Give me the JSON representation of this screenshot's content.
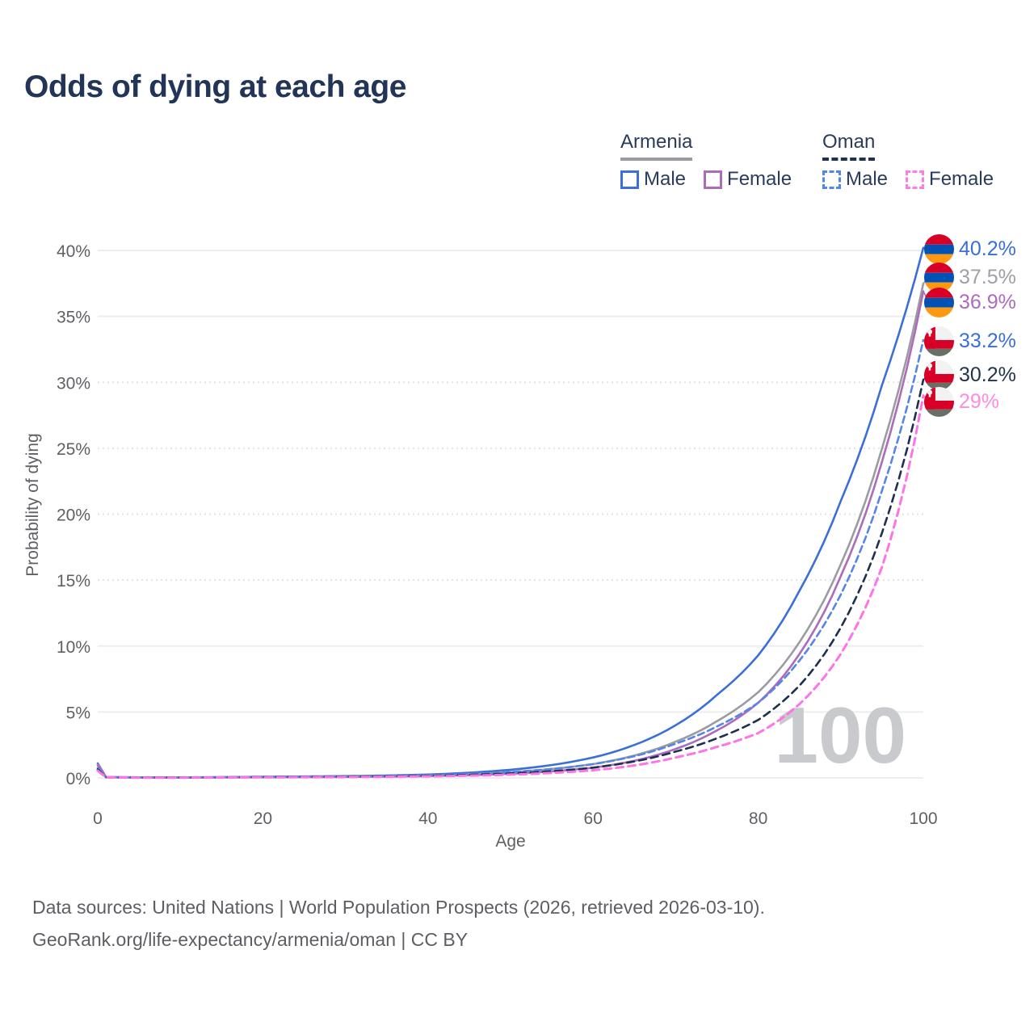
{
  "header": {
    "title": "Odds of dying at each age"
  },
  "legend": {
    "groups": [
      {
        "name": "Armenia",
        "line_style": "solid",
        "underline_color": "#9A9AA0",
        "items": [
          {
            "label": "Male",
            "color": "#3A6FD8"
          },
          {
            "label": "Female",
            "color": "#AC6BBB"
          }
        ]
      },
      {
        "name": "Oman",
        "line_style": "dashed",
        "underline_color": "#1F3251",
        "items": [
          {
            "label": "Male",
            "color": "#5585E6"
          },
          {
            "label": "Female",
            "color": "#FF7BE5"
          }
        ]
      }
    ]
  },
  "watermark": "100",
  "footer": {
    "line1": "Data sources: United Nations | World Population Prospects (2026, retrieved 2026-03-10).",
    "line2": "GeoRank.org/life-expectancy/armenia/oman | CC BY"
  },
  "chart_data": {
    "type": "line",
    "title": "Odds of dying at each age",
    "xlabel": "Age",
    "ylabel": "Probability of dying",
    "x_unit": "years",
    "y_unit": "percent",
    "xlim": [
      0,
      100
    ],
    "ylim": [
      0,
      40
    ],
    "x_ticks": [
      0,
      20,
      40,
      60,
      80,
      100
    ],
    "y_ticks": [
      0,
      5,
      10,
      15,
      20,
      25,
      30,
      35,
      40
    ],
    "grid": "horizontal",
    "legend_position": "top-right",
    "x": [
      0,
      1,
      5,
      10,
      15,
      20,
      25,
      30,
      35,
      40,
      45,
      50,
      55,
      60,
      65,
      70,
      75,
      80,
      85,
      90,
      95,
      100
    ],
    "series": [
      {
        "name": "Armenia Male",
        "country": "Armenia",
        "sex": "Male",
        "flag": "armenia",
        "color": "#3A6FD8",
        "dash": false,
        "dash_pattern": "",
        "width": 2.6,
        "end_label": "40.2%",
        "end_value": 40.2,
        "label_color": "#3A6FD8",
        "label_pct": 40.15,
        "values": [
          1.1,
          0.07,
          0.04,
          0.04,
          0.06,
          0.09,
          0.11,
          0.14,
          0.18,
          0.26,
          0.4,
          0.62,
          0.98,
          1.55,
          2.5,
          4.0,
          6.3,
          9.3,
          14.2,
          21.0,
          29.8,
          40.2
        ]
      },
      {
        "name": "Armenia Both sexes",
        "country": "Armenia",
        "sex": "Both",
        "flag": "armenia",
        "color": "#9B9CA1",
        "dash": false,
        "dash_pattern": "",
        "width": 2.6,
        "end_label": "37.5%",
        "end_value": 37.5,
        "label_color": "#9EA0A5",
        "label_pct": 38.0,
        "values": [
          1.0,
          0.06,
          0.035,
          0.03,
          0.05,
          0.07,
          0.085,
          0.1,
          0.13,
          0.19,
          0.28,
          0.44,
          0.68,
          1.05,
          1.7,
          2.75,
          4.3,
          6.5,
          10.3,
          16.2,
          25.0,
          37.5
        ]
      },
      {
        "name": "Armenia Female",
        "country": "Armenia",
        "sex": "Female",
        "flag": "armenia",
        "color": "#AC6BBB",
        "dash": false,
        "dash_pattern": "",
        "width": 2.6,
        "end_label": "36.9%",
        "end_value": 36.9,
        "label_color": "#AC6BBB",
        "label_pct": 36.08,
        "values": [
          0.95,
          0.06,
          0.03,
          0.025,
          0.04,
          0.05,
          0.06,
          0.075,
          0.1,
          0.14,
          0.21,
          0.32,
          0.5,
          0.78,
          1.3,
          2.2,
          3.6,
          5.7,
          9.4,
          15.3,
          24.0,
          36.9
        ]
      },
      {
        "name": "Oman Male",
        "country": "Oman",
        "sex": "Male",
        "flag": "oman",
        "color": "#5585E6",
        "dash": true,
        "dash_pattern": "8 5",
        "width": 2.6,
        "end_label": "33.2%",
        "end_value": 33.2,
        "label_color": "#3A6FD8",
        "label_pct": 33.14,
        "values": [
          0.75,
          0.05,
          0.03,
          0.03,
          0.05,
          0.08,
          0.1,
          0.12,
          0.15,
          0.21,
          0.3,
          0.45,
          0.68,
          1.05,
          1.65,
          2.6,
          3.9,
          5.7,
          8.9,
          13.9,
          21.8,
          33.2
        ]
      },
      {
        "name": "Oman Both sexes",
        "country": "Oman",
        "sex": "Both",
        "flag": "oman",
        "color": "#1E3050",
        "dash": true,
        "dash_pattern": "9 6",
        "width": 2.6,
        "end_label": "30.2%",
        "end_value": 30.2,
        "label_color": "#23344F",
        "label_pct": 30.57,
        "values": [
          0.65,
          0.045,
          0.025,
          0.025,
          0.04,
          0.06,
          0.075,
          0.09,
          0.115,
          0.16,
          0.23,
          0.34,
          0.51,
          0.78,
          1.25,
          2.0,
          3.0,
          4.4,
          7.0,
          11.4,
          18.6,
          30.2
        ]
      },
      {
        "name": "Oman Female",
        "country": "Oman",
        "sex": "Female",
        "flag": "oman",
        "color": "#FF74E4",
        "dash": true,
        "dash_pattern": "9 6",
        "width": 3,
        "end_label": "29%",
        "end_value": 29.0,
        "label_color": "#FF8AE0",
        "label_pct": 28.55,
        "values": [
          0.55,
          0.04,
          0.02,
          0.02,
          0.03,
          0.045,
          0.055,
          0.065,
          0.085,
          0.115,
          0.17,
          0.25,
          0.38,
          0.58,
          0.95,
          1.55,
          2.35,
          3.4,
          5.6,
          9.4,
          16.0,
          29.0
        ]
      }
    ]
  }
}
